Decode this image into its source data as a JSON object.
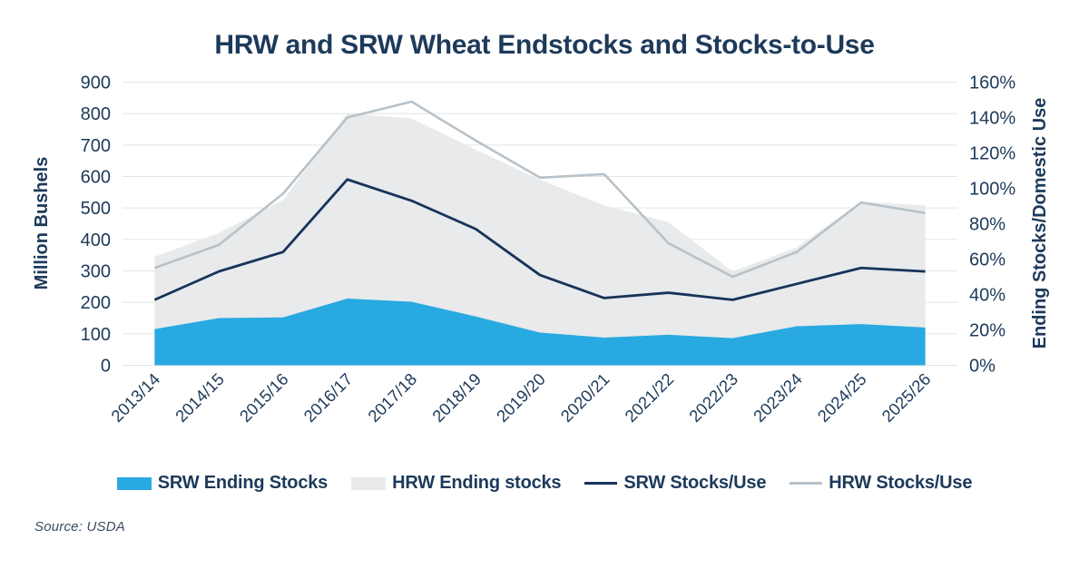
{
  "title": "HRW and SRW Wheat Endstocks and Stocks-to-Use",
  "source_note": "Source: USDA",
  "colors": {
    "text_navy": "#1d3a5a",
    "srw_area_blue": "#29a9e1",
    "hrw_area_gray": "#e8eaeb",
    "srw_line_navy": "#17335a",
    "hrw_line_gray": "#b8c2c8",
    "gridline": "#e2e4e6",
    "source_text": "#3b4c63"
  },
  "legend": [
    {
      "label": "SRW Ending Stocks",
      "swatch": "area",
      "color": "#29a9e1"
    },
    {
      "label": "HRW Ending stocks",
      "swatch": "area",
      "color": "#e8eaeb"
    },
    {
      "label": "SRW Stocks/Use",
      "swatch": "line",
      "color": "#17335a"
    },
    {
      "label": "HRW Stocks/Use",
      "swatch": "line",
      "color": "#b8c2c8"
    }
  ],
  "chart_data": {
    "type": "area",
    "subtype": "stacked areas with overlay lines, dual axes",
    "categories": [
      "2013/14",
      "2014/15",
      "2015/16",
      "2016/17",
      "2017/18",
      "2018/19",
      "2019/20",
      "2020/21",
      "2021/22",
      "2022/23",
      "2023/24",
      "2024/25",
      "2025/26"
    ],
    "series": [
      {
        "name": "SRW Ending Stocks",
        "type": "area",
        "axis": "left",
        "color": "#29a9e1",
        "values": [
          115,
          150,
          152,
          212,
          202,
          155,
          104,
          88,
          97,
          86,
          124,
          131,
          120
        ]
      },
      {
        "name": "HRW Ending stocks",
        "type": "area",
        "axis": "left",
        "stacked_on": "SRW Ending Stocks",
        "color": "#e8eaeb",
        "values": [
          230,
          270,
          373,
          588,
          583,
          530,
          486,
          420,
          358,
          212,
          251,
          389,
          388
        ]
      },
      {
        "name": "SRW Stocks/Use",
        "type": "line",
        "axis": "right",
        "color": "#17335a",
        "values": [
          37,
          53,
          64,
          105,
          93,
          77,
          51,
          38,
          41,
          37,
          46,
          55,
          53
        ]
      },
      {
        "name": "HRW Stocks/Use",
        "type": "line",
        "axis": "right",
        "color": "#b8c2c8",
        "values": [
          55,
          68,
          97,
          140,
          149,
          127,
          106,
          108,
          69,
          50,
          64,
          92,
          86
        ]
      }
    ],
    "left_axis": {
      "label": "Million Bushels",
      "min": 0,
      "max": 900,
      "step": 100,
      "tick_labels": [
        "0",
        "100",
        "200",
        "300",
        "400",
        "500",
        "600",
        "700",
        "800",
        "900"
      ]
    },
    "right_axis": {
      "label": "Ending Stocks/Domestic Use",
      "min": 0,
      "max": 160,
      "step": 20,
      "tick_labels": [
        "0%",
        "20%",
        "40%",
        "60%",
        "80%",
        "100%",
        "120%",
        "140%",
        "160%"
      ]
    },
    "grid": true,
    "legend_position": "bottom"
  }
}
